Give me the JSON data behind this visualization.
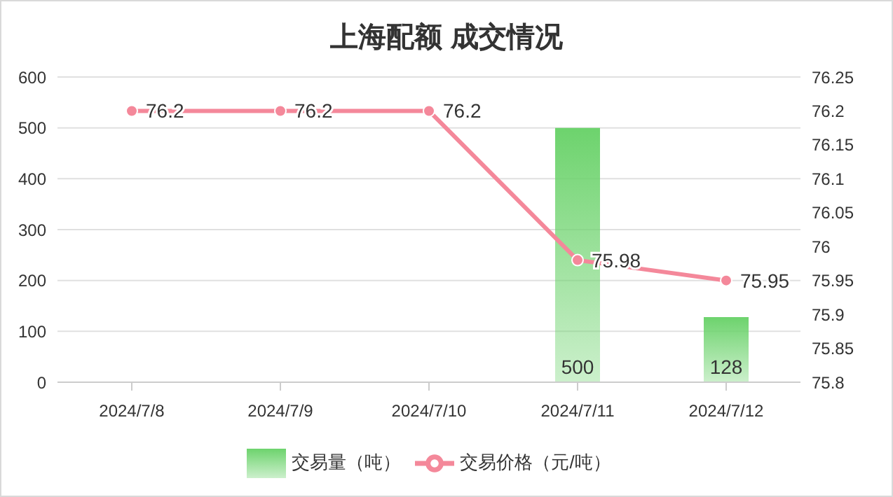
{
  "chart_data": {
    "type": "bar",
    "title": "上海配额 成交情况",
    "categories": [
      "2024/7/8",
      "2024/7/9",
      "2024/7/10",
      "2024/7/11",
      "2024/7/12"
    ],
    "series": [
      {
        "name": "交易量（吨）",
        "color": "#6dd36d",
        "values": [
          null,
          null,
          null,
          500,
          128
        ]
      },
      {
        "name": "交易价格（元/吨）",
        "type": "line",
        "axis": "y2",
        "color": "#f4889a",
        "values": [
          76.2,
          76.2,
          76.2,
          75.98,
          75.95
        ]
      }
    ],
    "ylim": [
      0,
      600
    ],
    "yticks": [
      0,
      100,
      200,
      300,
      400,
      500,
      600
    ],
    "y2lim": [
      75.8,
      76.25
    ],
    "y2ticks": [
      75.8,
      75.85,
      75.9,
      75.95,
      76,
      76.05,
      76.1,
      76.15,
      76.2,
      76.25
    ],
    "grid": "y",
    "legend": "bottom",
    "data_labels": true,
    "marker": "circle",
    "line_style": "solid"
  }
}
